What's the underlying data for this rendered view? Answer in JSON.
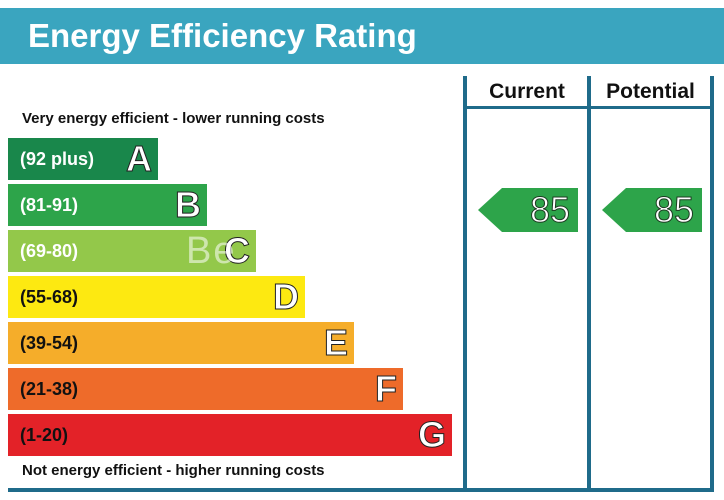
{
  "title": "Energy Efficiency Rating",
  "top_caption": "Very energy efficient - lower running costs",
  "bottom_caption": "Not energy efficient - higher running costs",
  "columns": {
    "current": "Current",
    "potential": "Potential"
  },
  "watermark": "Be",
  "bands": [
    {
      "range": "(92 plus)",
      "letter": "A",
      "color": "#19874b",
      "dark_text": false
    },
    {
      "range": "(81-91)",
      "letter": "B",
      "color": "#2da44a",
      "dark_text": false
    },
    {
      "range": "(69-80)",
      "letter": "C",
      "color": "#93c84a",
      "dark_text": false
    },
    {
      "range": "(55-68)",
      "letter": "D",
      "color": "#fde911",
      "dark_text": true
    },
    {
      "range": "(39-54)",
      "letter": "E",
      "color": "#f5ad2a",
      "dark_text": true
    },
    {
      "range": "(21-38)",
      "letter": "F",
      "color": "#ee6b2a",
      "dark_text": true
    },
    {
      "range": "(1-20)",
      "letter": "G",
      "color": "#e32228",
      "dark_text": true
    }
  ],
  "chart_data": {
    "type": "bar",
    "title": "Energy Efficiency Rating",
    "categories": [
      "A",
      "B",
      "C",
      "D",
      "E",
      "F",
      "G"
    ],
    "ranges": [
      "(92 plus)",
      "(81-91)",
      "(69-80)",
      "(55-68)",
      "(39-54)",
      "(21-38)",
      "(1-20)"
    ],
    "current": {
      "value": 85,
      "band": "B"
    },
    "potential": {
      "value": 85,
      "band": "B"
    },
    "arrow_color": "#2da44a"
  }
}
